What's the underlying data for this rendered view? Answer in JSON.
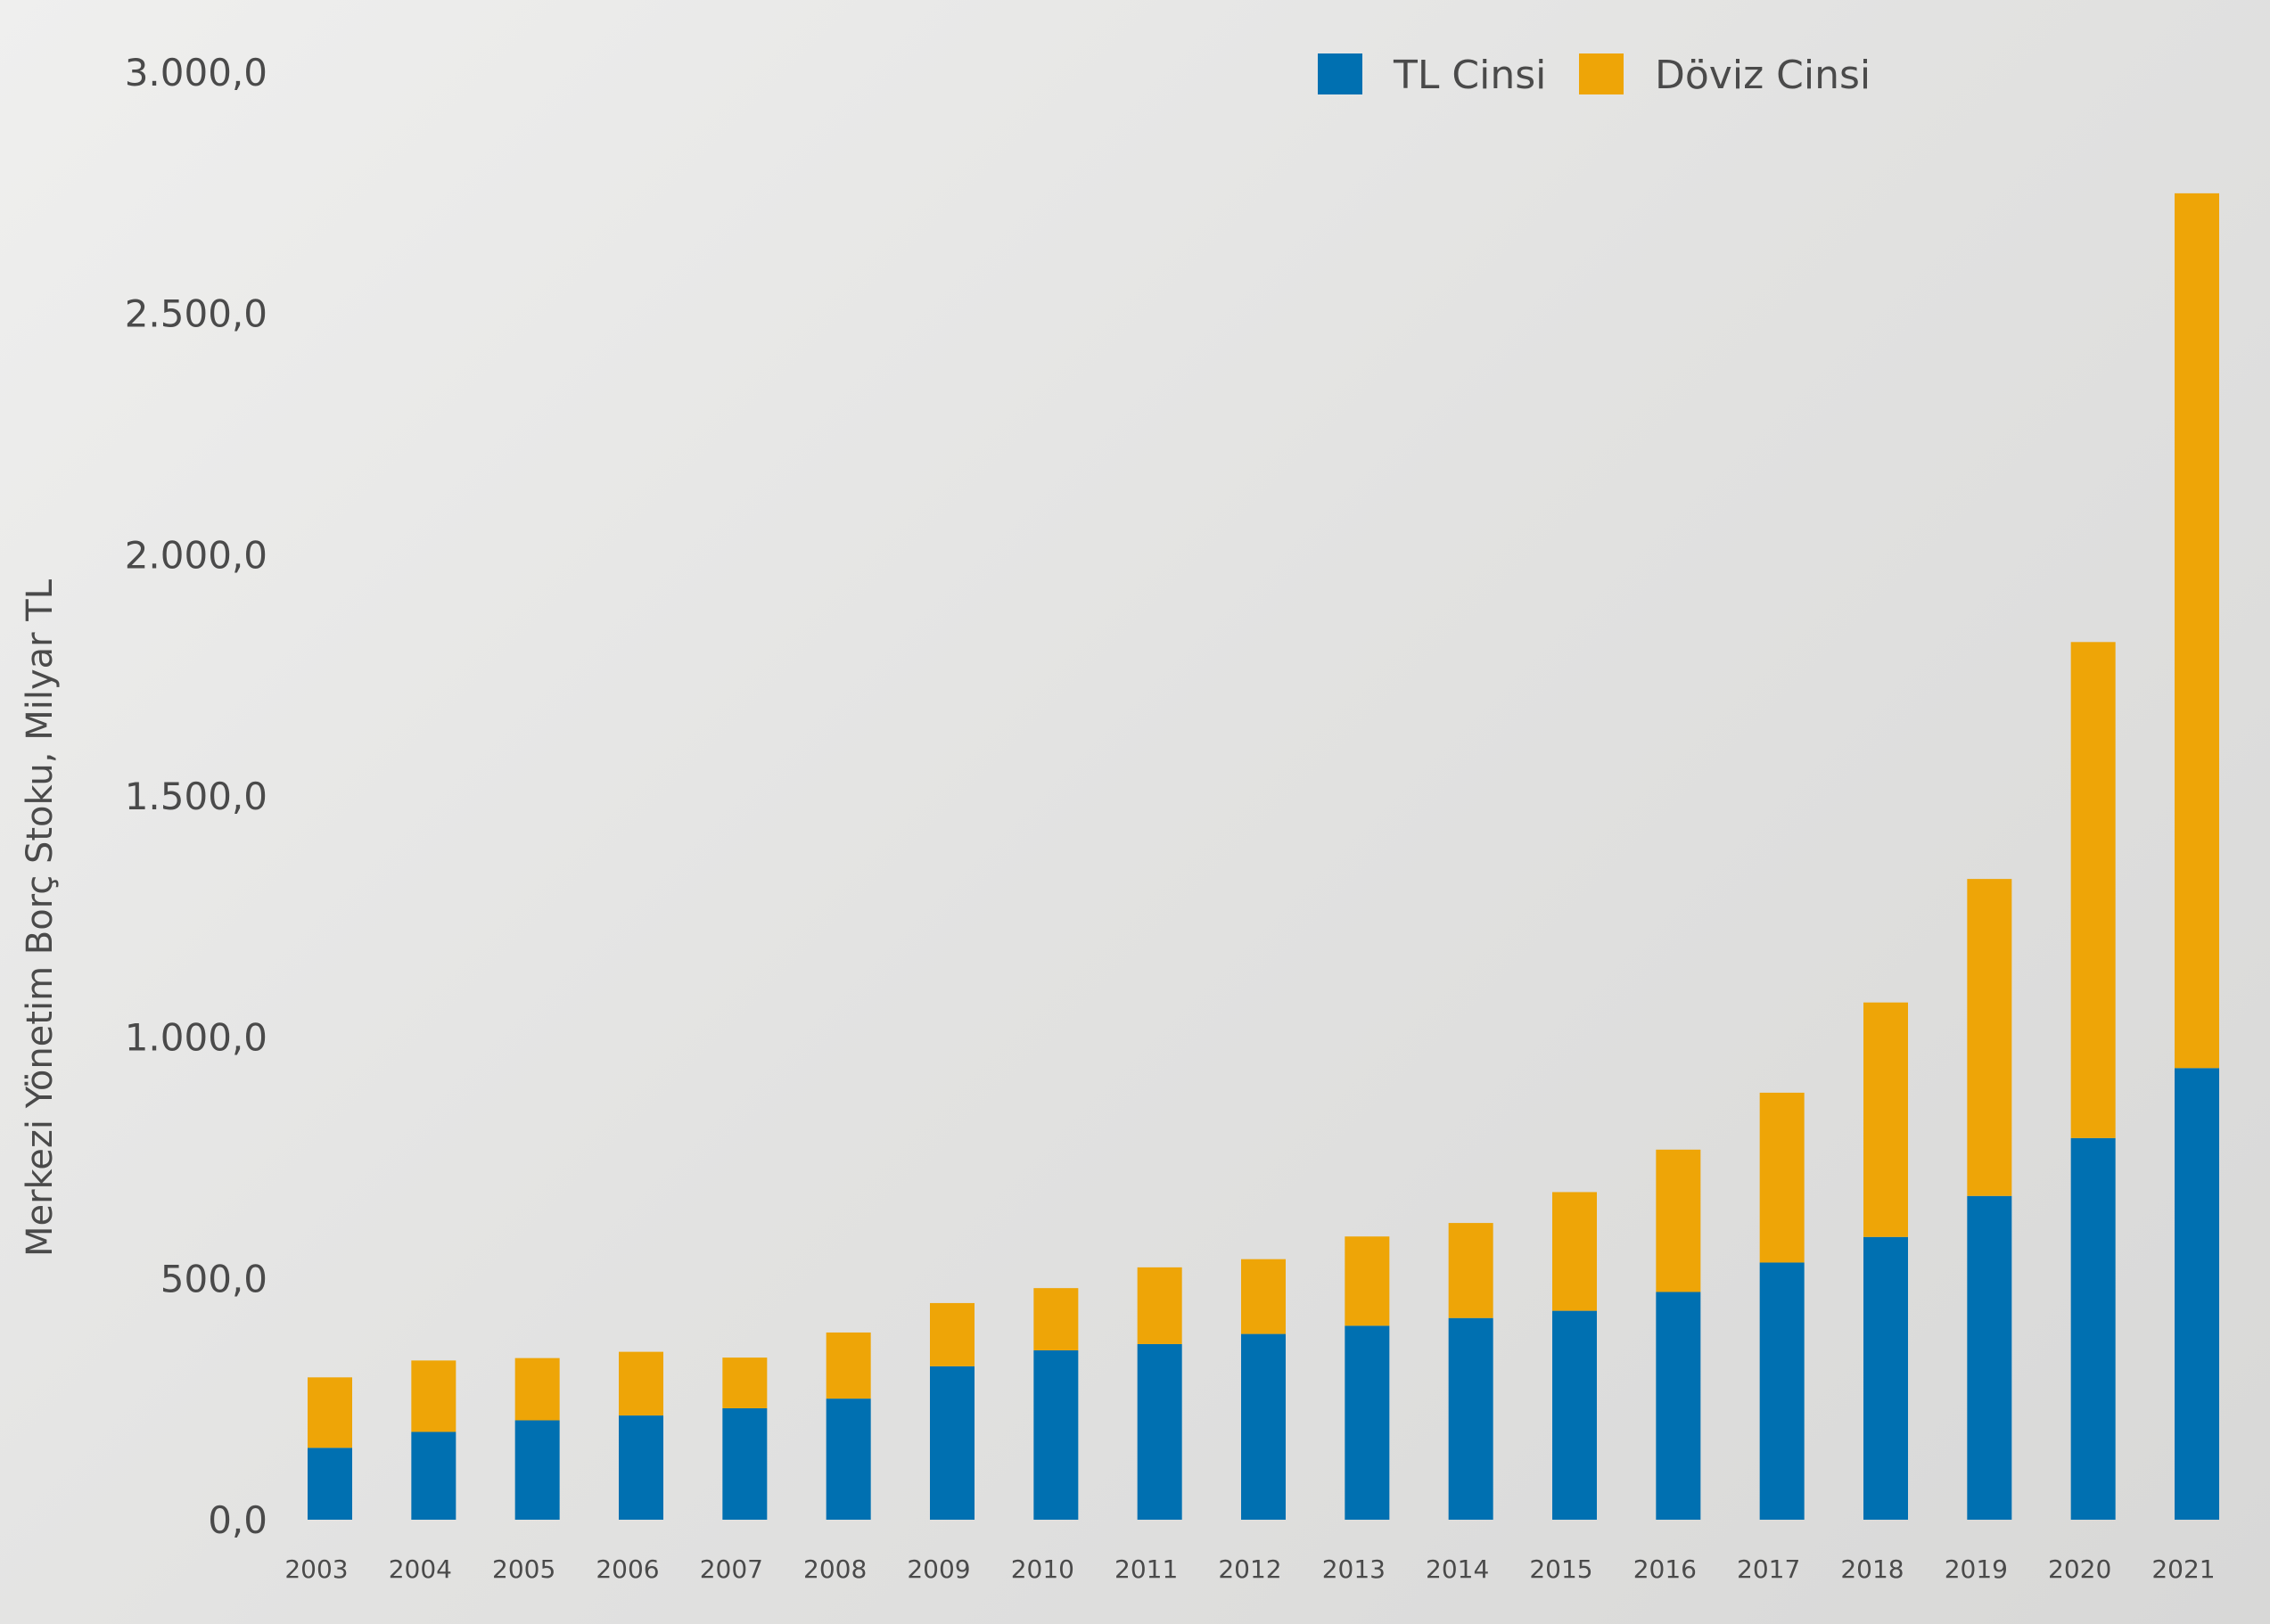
{
  "chart_data": {
    "type": "bar",
    "stacked": true,
    "title": "",
    "xlabel": "",
    "ylabel": "Merkezi Yönetim Borç Stoku, Milyar TL",
    "ylim": [
      0,
      3000
    ],
    "yticks": [
      0,
      500,
      1000,
      1500,
      2000,
      2500,
      3000
    ],
    "ytick_labels": [
      "0,0",
      "500,0",
      "1.000,0",
      "1.500,0",
      "2.000,0",
      "2.500,0",
      "3.000,0"
    ],
    "grid": false,
    "legend_position": "top-right",
    "categories": [
      "2003",
      "2004",
      "2005",
      "2006",
      "2007",
      "2008",
      "2009",
      "2010",
      "2011",
      "2012",
      "2013",
      "2014",
      "2015",
      "2016",
      "2017",
      "2018",
      "2019",
      "2020",
      "2021"
    ],
    "series": [
      {
        "name": "TL Cinsi",
        "color": "#0070b1",
        "values": [
          149,
          182,
          206,
          216,
          231,
          251,
          318,
          351,
          364,
          385,
          402,
          418,
          433,
          472,
          533,
          586,
          671,
          791,
          936
        ]
      },
      {
        "name": "Döviz Cinsi",
        "color": "#eea507",
        "values": [
          146,
          148,
          129,
          132,
          105,
          137,
          131,
          129,
          159,
          155,
          185,
          197,
          246,
          295,
          352,
          486,
          657,
          1028,
          1813
        ]
      }
    ]
  }
}
